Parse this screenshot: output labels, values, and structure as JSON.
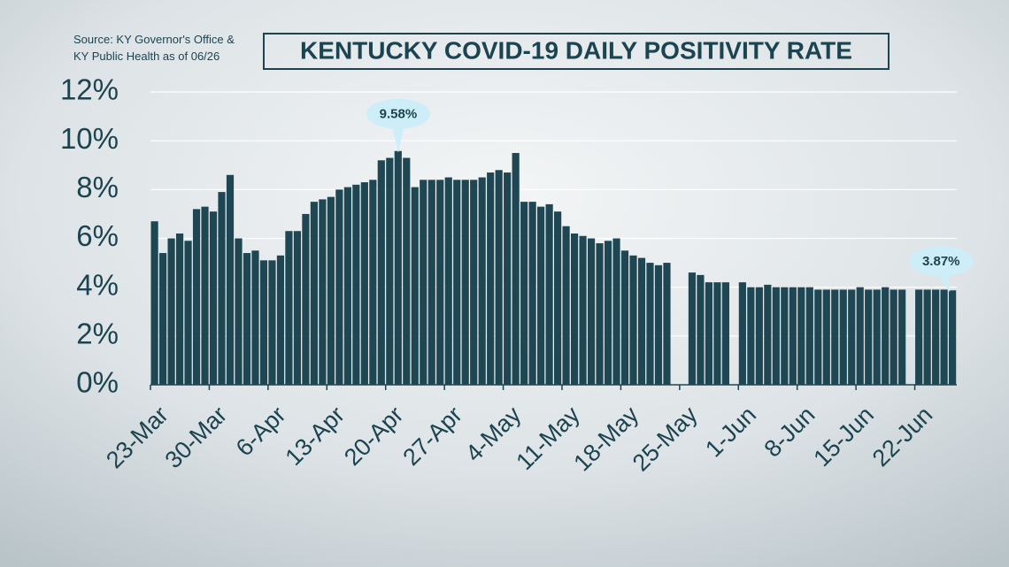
{
  "chart_data": {
    "type": "bar",
    "title": "KENTUCKY COVID-19 DAILY POSITIVITY RATE",
    "source": [
      "Source: KY Governor's Office &",
      "KY Public Health as of 06/26"
    ],
    "categories": [
      "23-Mar",
      null,
      null,
      null,
      null,
      null,
      null,
      "30-Mar",
      null,
      null,
      null,
      null,
      null,
      null,
      "6-Apr",
      null,
      null,
      null,
      null,
      null,
      null,
      "13-Apr",
      null,
      null,
      null,
      null,
      null,
      null,
      "20-Apr",
      null,
      null,
      null,
      null,
      null,
      null,
      "27-Apr",
      null,
      null,
      null,
      null,
      null,
      null,
      "4-May",
      null,
      null,
      null,
      null,
      null,
      null,
      "11-May",
      null,
      null,
      null,
      null,
      null,
      null,
      "18-May",
      null,
      null,
      null,
      null,
      null,
      null,
      "25-May",
      null,
      null,
      null,
      null,
      null,
      null,
      "1-Jun",
      null,
      null,
      null,
      null,
      null,
      null,
      "8-Jun",
      null,
      null,
      null,
      null,
      null,
      null,
      "15-Jun",
      null,
      null,
      null,
      null,
      null,
      null,
      "22-Jun",
      null,
      null,
      null,
      null
    ],
    "values": [
      6.7,
      5.4,
      6.0,
      6.2,
      5.9,
      7.2,
      7.3,
      7.1,
      7.9,
      8.6,
      6.0,
      5.4,
      5.5,
      5.1,
      5.1,
      5.3,
      6.3,
      6.3,
      7.0,
      7.5,
      7.6,
      7.7,
      8.0,
      8.1,
      8.2,
      8.3,
      8.4,
      9.2,
      9.3,
      9.58,
      9.3,
      8.1,
      8.4,
      8.4,
      8.4,
      8.5,
      8.4,
      8.4,
      8.4,
      8.5,
      8.7,
      8.8,
      8.7,
      9.5,
      7.5,
      7.5,
      7.3,
      7.4,
      7.1,
      6.5,
      6.2,
      6.1,
      6.0,
      5.8,
      5.9,
      6.0,
      5.5,
      5.3,
      5.2,
      5.0,
      4.9,
      5.0,
      null,
      null,
      4.6,
      4.5,
      4.2,
      4.2,
      4.2,
      null,
      4.2,
      4.0,
      4.0,
      4.1,
      4.0,
      4.0,
      4.0,
      4.0,
      4.0,
      3.9,
      3.9,
      3.9,
      3.9,
      3.9,
      4.0,
      3.9,
      3.9,
      4.0,
      3.9,
      3.9,
      null,
      3.9,
      3.9,
      3.9,
      3.9,
      3.87
    ],
    "value_labels": [
      null,
      null,
      null,
      null,
      null,
      null,
      null,
      null,
      null,
      null,
      null,
      null,
      null,
      null,
      null,
      null,
      null,
      null,
      null,
      null,
      null,
      null,
      null,
      null,
      null,
      null,
      null,
      null,
      null,
      "9.58%",
      null,
      null,
      null,
      null,
      null,
      null,
      null,
      null,
      null,
      null,
      null,
      null,
      null,
      null,
      null,
      null,
      null,
      null,
      null,
      null,
      null,
      null,
      null,
      null,
      null,
      null,
      null,
      null,
      null,
      null,
      null,
      null,
      null,
      null,
      null,
      null,
      null,
      null,
      null,
      null,
      null,
      null,
      null,
      null,
      null,
      null,
      null,
      null,
      null,
      null,
      null,
      null,
      null,
      null,
      null,
      null,
      null,
      null,
      null,
      null,
      null,
      null,
      null,
      null,
      null,
      "3.87%"
    ],
    "color": "#1e4753",
    "ylim": [
      0,
      12
    ],
    "yticks": [
      {
        "value": 0,
        "label": "0%"
      },
      {
        "value": 2,
        "label": "2%"
      },
      {
        "value": 4,
        "label": "4%"
      },
      {
        "value": 6,
        "label": "6%"
      },
      {
        "value": 8,
        "label": "8%"
      },
      {
        "value": 10,
        "label": "10%"
      },
      {
        "value": 12,
        "label": "12%"
      }
    ],
    "grid": true
  }
}
